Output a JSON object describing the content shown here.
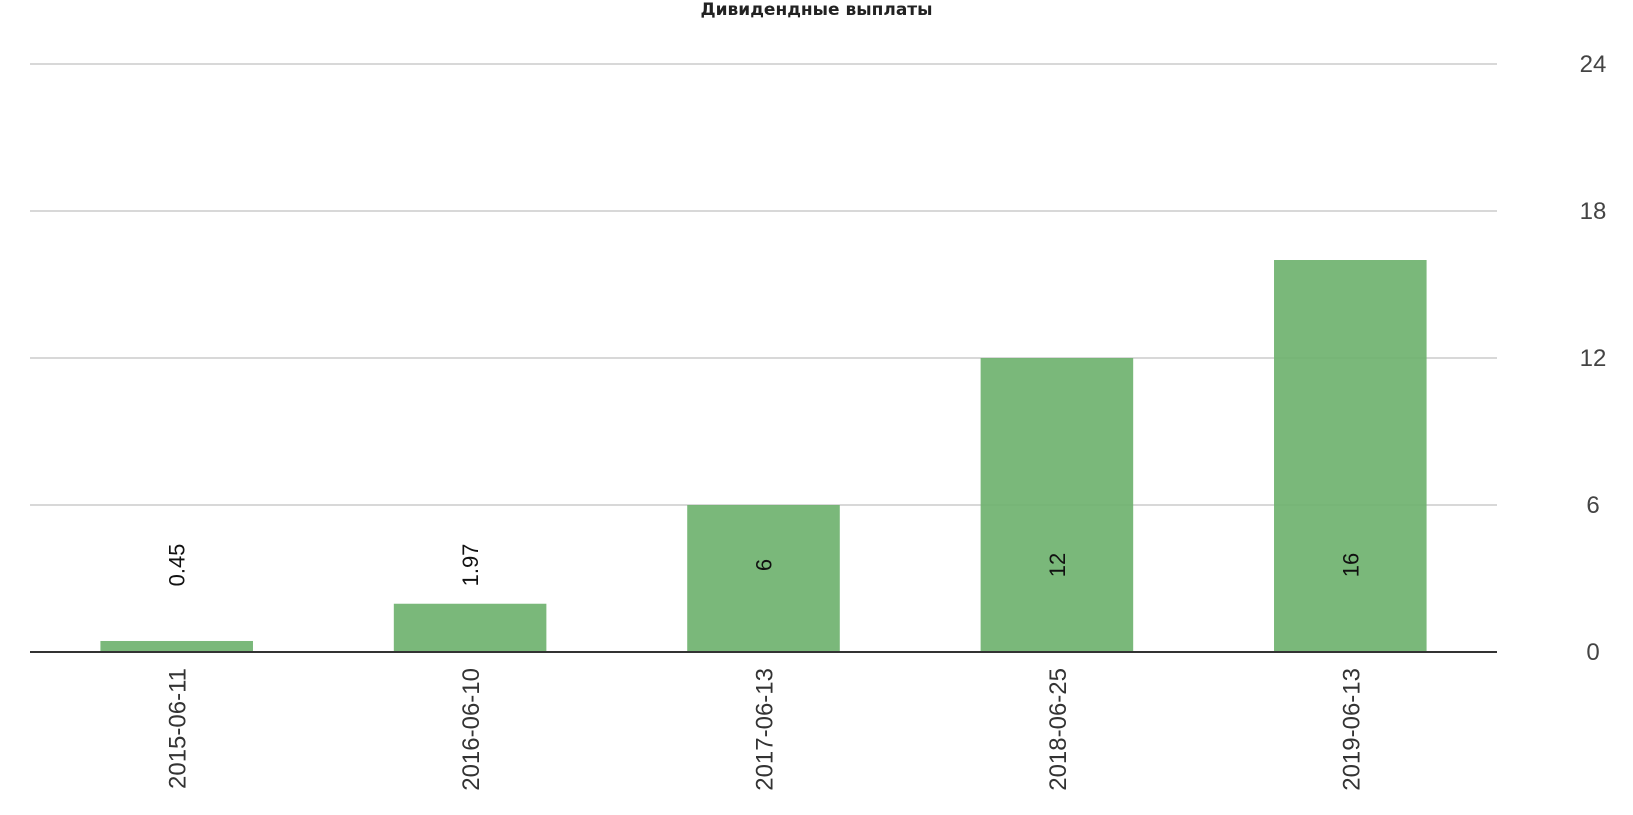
{
  "chart_data": {
    "type": "bar",
    "title": "Дивидендные выплаты",
    "categories": [
      "2015-06-11",
      "2016-06-10",
      "2017-06-13",
      "2018-06-25",
      "2019-06-13"
    ],
    "values": [
      0.45,
      1.97,
      6,
      12,
      16
    ],
    "value_labels": [
      "0.45",
      "1.97",
      "6",
      "12",
      "16"
    ],
    "ylim": [
      0,
      24
    ],
    "yticks": [
      0,
      6,
      12,
      18,
      24
    ],
    "ytick_labels": [
      "0",
      "6",
      "12",
      "18",
      "24"
    ],
    "y_axis_position": "right",
    "grid": true,
    "bar_color": "#6fb26f",
    "grid_color": "#cccccc",
    "axis_color": "#333333"
  }
}
